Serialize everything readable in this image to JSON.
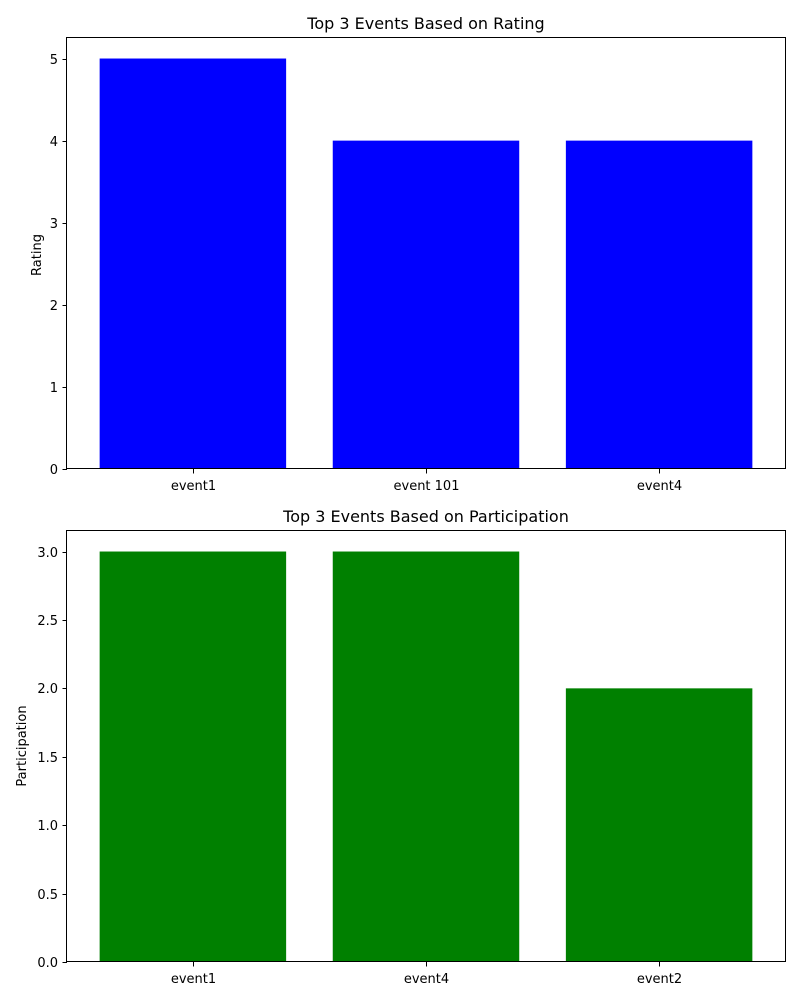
{
  "chart_data": [
    {
      "type": "bar",
      "title": "Top 3 Events Based on Rating",
      "xlabel": "",
      "ylabel": "Rating",
      "categories": [
        "event1",
        "event 101",
        "event4"
      ],
      "values": [
        5,
        4,
        4
      ],
      "ylim": [
        0,
        5.25
      ],
      "yticks": [
        0,
        1,
        2,
        3,
        4,
        5
      ],
      "ytick_labels": [
        "0",
        "1",
        "2",
        "3",
        "4",
        "5"
      ],
      "bar_color": "#0000ff",
      "grid": false,
      "legend": "none"
    },
    {
      "type": "bar",
      "title": "Top 3 Events Based on Participation",
      "xlabel": "",
      "ylabel": "Participation",
      "categories": [
        "event1",
        "event4",
        "event2"
      ],
      "values": [
        3,
        3,
        2
      ],
      "ylim": [
        0,
        3.15
      ],
      "yticks": [
        0,
        0.5,
        1,
        1.5,
        2,
        2.5,
        3
      ],
      "ytick_labels": [
        "0.0",
        "0.5",
        "1.0",
        "1.5",
        "2.0",
        "2.5",
        "3.0"
      ],
      "bar_color": "#008000",
      "grid": false,
      "legend": "none"
    }
  ]
}
